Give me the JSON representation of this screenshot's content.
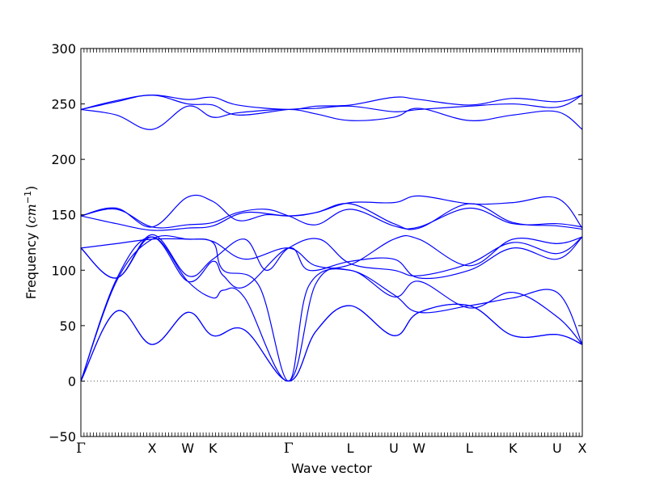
{
  "chart_data": {
    "type": "line",
    "xlabel": "Wave vector",
    "ylabel": {
      "prefix": "Frequency (",
      "unit_base": "cm",
      "unit_exp": "−1",
      "suffix": ")"
    },
    "ylim": [
      -50,
      300
    ],
    "yticks": [
      -50,
      0,
      50,
      100,
      150,
      200,
      250,
      300
    ],
    "grid": false,
    "legend": "none",
    "line_color": "#0000ff",
    "zero_line": {
      "y": 0,
      "style": "dotted",
      "color": "#555555"
    },
    "x_symmetry_points": [
      {
        "label": "Γ",
        "x": 0.0
      },
      {
        "label": "X",
        "x": 1.0
      },
      {
        "label": "W",
        "x": 1.5
      },
      {
        "label": "K",
        "x": 1.854
      },
      {
        "label": "Γ",
        "x": 2.915
      },
      {
        "label": "L",
        "x": 3.781
      },
      {
        "label": "U",
        "x": 4.393
      },
      {
        "label": "W",
        "x": 4.747
      },
      {
        "label": "L",
        "x": 5.454
      },
      {
        "label": "K",
        "x": 6.066
      },
      {
        "label": "U",
        "x": 6.685
      },
      {
        "label": "X",
        "x": 7.039
      }
    ],
    "series": [
      {
        "x": [
          0,
          0.5,
          1.0,
          1.5,
          1.854,
          2.3,
          2.915,
          3.3,
          3.781,
          4.393,
          4.747,
          5.454,
          6.066,
          6.685,
          7.039
        ],
        "values": [
          0,
          63,
          33,
          62,
          41,
          46,
          0,
          45,
          68,
          41,
          62,
          68,
          41,
          42,
          33
        ]
      },
      {
        "x": [
          0,
          0.5,
          1.0,
          1.5,
          1.854,
          2.3,
          2.915,
          3.3,
          3.781,
          4.393,
          4.747,
          5.454,
          6.066,
          6.685,
          7.039
        ],
        "values": [
          0,
          63,
          33,
          62,
          41,
          46,
          0,
          45,
          68,
          41,
          62,
          68,
          41,
          42,
          33
        ]
      },
      {
        "x": [
          0,
          0.5,
          1.0,
          1.5,
          1.854,
          2.0,
          2.5,
          2.915,
          3.2,
          3.781,
          4.393,
          4.747,
          5.454,
          6.066,
          6.685,
          7.039
        ],
        "values": [
          0,
          90,
          128,
          128,
          125,
          100,
          86,
          0,
          86,
          100,
          76,
          90,
          66,
          80,
          58,
          33
        ]
      },
      {
        "x": [
          0,
          0.5,
          1.0,
          1.5,
          1.854,
          2.0,
          2.3,
          2.915,
          3.3,
          3.781,
          4.393,
          4.747,
          5.454,
          6.066,
          6.685,
          7.039
        ],
        "values": [
          0,
          92,
          130,
          90,
          75,
          82,
          75,
          0,
          88,
          100,
          78,
          62,
          68,
          75,
          80,
          33
        ]
      },
      {
        "x": [
          0,
          0.5,
          1.0,
          1.5,
          1.854,
          2.0,
          2.3,
          2.915,
          3.2,
          3.781,
          4.393,
          4.747,
          5.454,
          6.066,
          6.685,
          7.039
        ],
        "values": [
          120,
          93,
          130,
          90,
          108,
          95,
          85,
          120,
          100,
          108,
          110,
          93,
          100,
          120,
          110,
          130
        ]
      },
      {
        "x": [
          0,
          0.5,
          1.0,
          1.5,
          1.854,
          2.3,
          2.6,
          2.915,
          3.35,
          3.781,
          4.393,
          4.747,
          5.454,
          6.066,
          6.685,
          7.039
        ],
        "values": [
          120,
          93,
          132,
          95,
          110,
          128,
          100,
          120,
          128,
          106,
          100,
          95,
          106,
          125,
          115,
          130
        ]
      },
      {
        "x": [
          0,
          0.5,
          1.0,
          1.5,
          1.854,
          2.3,
          2.915,
          3.3,
          3.781,
          4.393,
          4.747,
          5.454,
          6.066,
          6.685,
          7.039
        ],
        "values": [
          120,
          124,
          128,
          128,
          126,
          110,
          120,
          104,
          105,
          128,
          128,
          104,
          128,
          124,
          130
        ]
      },
      {
        "x": [
          0,
          0.5,
          1.0,
          1.5,
          1.854,
          2.3,
          2.915,
          3.3,
          3.781,
          4.393,
          4.747,
          5.454,
          6.066,
          6.685,
          7.039
        ],
        "values": [
          149,
          142,
          136,
          138,
          140,
          152,
          149,
          152,
          160,
          142,
          138,
          160,
          143,
          140,
          137
        ]
      },
      {
        "x": [
          0,
          0.5,
          1.0,
          1.5,
          1.854,
          2.2,
          2.6,
          2.915,
          3.3,
          3.781,
          4.393,
          4.747,
          5.454,
          6.066,
          6.685,
          7.039
        ],
        "values": [
          149,
          155,
          139,
          141,
          143,
          152,
          155,
          149,
          141,
          155,
          140,
          139,
          156,
          142,
          142,
          139
        ]
      },
      {
        "x": [
          0,
          0.5,
          1.0,
          1.5,
          1.854,
          2.2,
          2.6,
          2.915,
          3.3,
          3.781,
          4.393,
          4.747,
          5.454,
          6.066,
          6.685,
          7.039
        ],
        "values": [
          149,
          156,
          139,
          166,
          162,
          145,
          150,
          149,
          152,
          161,
          161,
          167,
          160,
          161,
          165,
          138
        ]
      },
      {
        "x": [
          0,
          0.5,
          1.0,
          1.5,
          1.854,
          2.2,
          2.915,
          3.3,
          3.781,
          4.393,
          4.747,
          5.454,
          6.066,
          6.685,
          7.039
        ],
        "values": [
          245,
          240,
          227,
          248,
          238,
          242,
          245,
          241,
          235,
          238,
          246,
          235,
          240,
          243,
          227
        ]
      },
      {
        "x": [
          0,
          0.5,
          1.0,
          1.5,
          1.854,
          2.2,
          2.915,
          3.3,
          3.781,
          4.393,
          4.747,
          5.454,
          6.066,
          6.685,
          7.039
        ],
        "values": [
          245,
          252,
          258,
          250,
          249,
          240,
          245,
          246,
          248,
          243,
          245,
          248,
          250,
          247,
          258
        ]
      },
      {
        "x": [
          0,
          0.5,
          1.0,
          1.5,
          1.854,
          2.2,
          2.915,
          3.3,
          3.781,
          4.393,
          4.747,
          5.454,
          6.066,
          6.685,
          7.039
        ],
        "values": [
          245,
          253,
          258,
          254,
          256,
          249,
          245,
          248,
          249,
          256,
          254,
          249,
          255,
          252,
          258
        ]
      }
    ]
  }
}
